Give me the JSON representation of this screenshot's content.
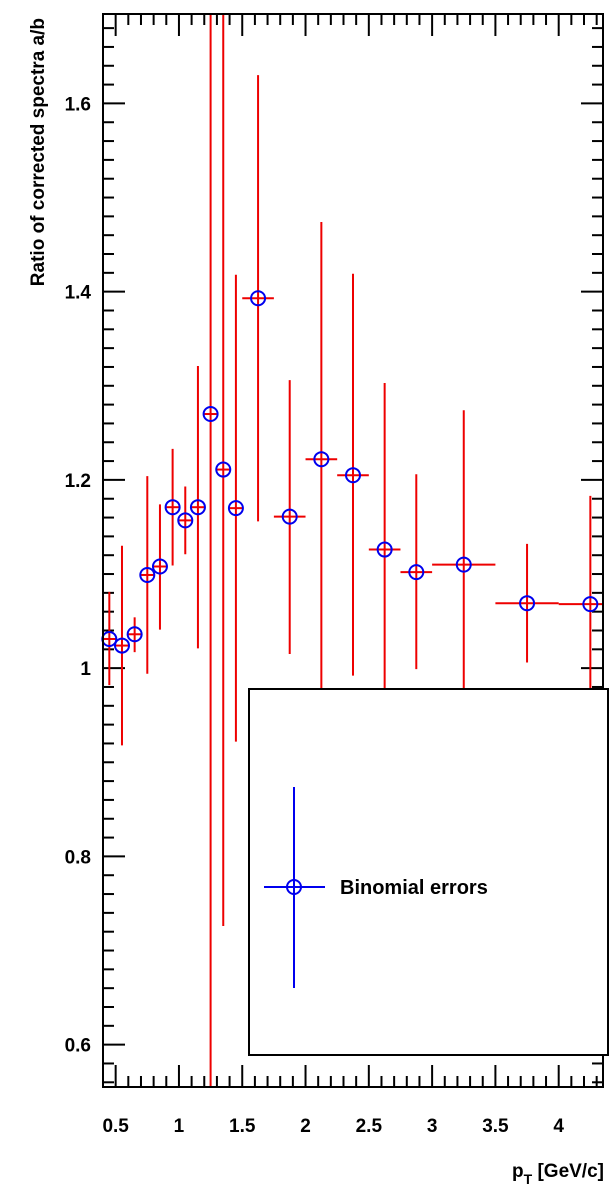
{
  "chart_data": {
    "type": "scatter",
    "ylabel": "Ratio of corrected spectra a/b",
    "xlabel_main": "p",
    "xlabel_sub": "T",
    "xlabel_unit": " [GeV/c]",
    "xlim": [
      0.4,
      4.35
    ],
    "ylim": [
      0.555,
      1.695
    ],
    "x_ticks": [
      {
        "value": 0.5,
        "label": "0.5"
      },
      {
        "value": 1.0,
        "label": "1"
      },
      {
        "value": 1.5,
        "label": "1.5"
      },
      {
        "value": 2.0,
        "label": "2"
      },
      {
        "value": 2.5,
        "label": "2.5"
      },
      {
        "value": 3.0,
        "label": "3"
      },
      {
        "value": 3.5,
        "label": "3.5"
      },
      {
        "value": 4.0,
        "label": "4"
      }
    ],
    "y_ticks": [
      {
        "value": 0.6,
        "label": "0.6"
      },
      {
        "value": 0.8,
        "label": "0.8"
      },
      {
        "value": 1.0,
        "label": "1"
      },
      {
        "value": 1.2,
        "label": "1.2"
      },
      {
        "value": 1.4,
        "label": "1.4"
      },
      {
        "value": 1.6,
        "label": "1.6"
      }
    ],
    "x_minor_step": 0.1,
    "y_minor_step": 0.02,
    "series": [
      {
        "name": "Binomial errors",
        "marker": "open-circle",
        "marker_color": "#0000ee",
        "error_color": "#ee0000",
        "points": [
          {
            "x": 0.45,
            "xerr": 0.05,
            "y": 1.031,
            "ylo": 0.982,
            "yhi": 1.081
          },
          {
            "x": 0.55,
            "xerr": 0.05,
            "y": 1.024,
            "ylo": 0.918,
            "yhi": 1.13
          },
          {
            "x": 0.65,
            "xerr": 0.05,
            "y": 1.036,
            "ylo": 1.017,
            "yhi": 1.054
          },
          {
            "x": 0.75,
            "xerr": 0.05,
            "y": 1.099,
            "ylo": 0.994,
            "yhi": 1.204
          },
          {
            "x": 0.85,
            "xerr": 0.05,
            "y": 1.108,
            "ylo": 1.041,
            "yhi": 1.174
          },
          {
            "x": 0.95,
            "xerr": 0.05,
            "y": 1.171,
            "ylo": 1.109,
            "yhi": 1.233
          },
          {
            "x": 1.05,
            "xerr": 0.05,
            "y": 1.157,
            "ylo": 1.121,
            "yhi": 1.193
          },
          {
            "x": 1.15,
            "xerr": 0.05,
            "y": 1.171,
            "ylo": 1.021,
            "yhi": 1.321
          },
          {
            "x": 1.25,
            "xerr": 0.05,
            "y": 1.27,
            "ylo": 0.555,
            "yhi": 1.695
          },
          {
            "x": 1.35,
            "xerr": 0.05,
            "y": 1.211,
            "ylo": 0.726,
            "yhi": 1.695
          },
          {
            "x": 1.45,
            "xerr": 0.05,
            "y": 1.17,
            "ylo": 0.922,
            "yhi": 1.418
          },
          {
            "x": 1.625,
            "xerr": 0.125,
            "y": 1.393,
            "ylo": 1.156,
            "yhi": 1.63
          },
          {
            "x": 1.875,
            "xerr": 0.125,
            "y": 1.161,
            "ylo": 1.015,
            "yhi": 1.306
          },
          {
            "x": 2.125,
            "xerr": 0.125,
            "y": 1.222,
            "ylo": 0.97,
            "yhi": 1.474
          },
          {
            "x": 2.375,
            "xerr": 0.125,
            "y": 1.205,
            "ylo": 0.992,
            "yhi": 1.419
          },
          {
            "x": 2.625,
            "xerr": 0.125,
            "y": 1.126,
            "ylo": 0.948,
            "yhi": 1.303
          },
          {
            "x": 2.875,
            "xerr": 0.125,
            "y": 1.102,
            "ylo": 0.999,
            "yhi": 1.206
          },
          {
            "x": 3.25,
            "xerr": 0.25,
            "y": 1.11,
            "ylo": 0.948,
            "yhi": 1.274
          },
          {
            "x": 3.75,
            "xerr": 0.25,
            "y": 1.069,
            "ylo": 1.006,
            "yhi": 1.132
          },
          {
            "x": 4.25,
            "xerr": 0.25,
            "y": 1.068,
            "ylo": 0.952,
            "yhi": 1.183
          }
        ]
      }
    ],
    "legend": {
      "position": "bottom-right",
      "entries": [
        {
          "label": "Binomial errors",
          "marker_color": "#0000ee",
          "line_color": "#0000ee"
        }
      ]
    }
  }
}
